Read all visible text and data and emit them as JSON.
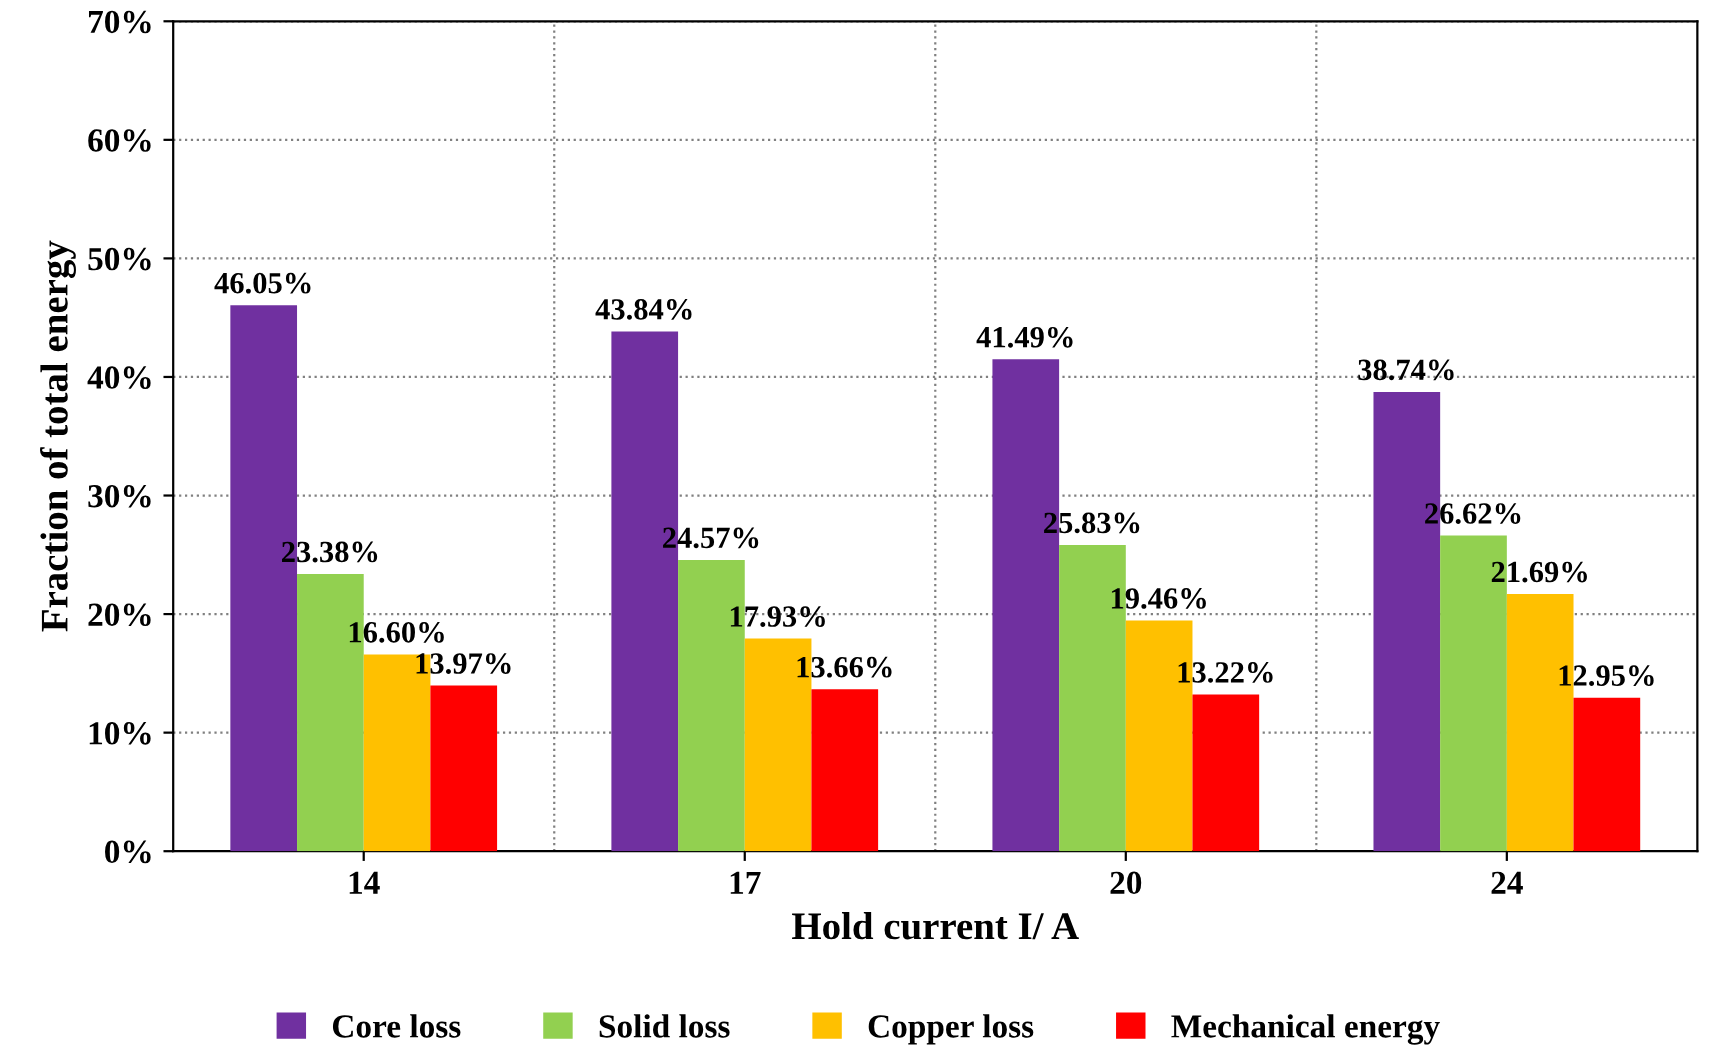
{
  "chart_data": {
    "type": "bar",
    "xlabel": "Hold current I/ A",
    "ylabel": "Fraction of total energy",
    "categories": [
      "14",
      "17",
      "20",
      "24"
    ],
    "series": [
      {
        "name": "Core loss",
        "color": "#7030a0",
        "values": [
          46.05,
          43.84,
          41.49,
          38.74
        ],
        "value_labels": [
          "46.05%",
          "43.84%",
          "41.49%",
          "38.74%"
        ]
      },
      {
        "name": "Solid loss",
        "color": "#92d050",
        "values": [
          23.38,
          24.57,
          25.83,
          26.62
        ],
        "value_labels": [
          "23.38%",
          "24.57%",
          "25.83%",
          "26.62%"
        ]
      },
      {
        "name": "Copper loss",
        "color": "#ffc000",
        "values": [
          16.6,
          17.93,
          19.46,
          21.69
        ],
        "value_labels": [
          "16.60%",
          "17.93%",
          "19.46%",
          "21.69%"
        ]
      },
      {
        "name": "Mechanical energy",
        "color": "#ff0000",
        "values": [
          13.97,
          13.66,
          13.22,
          12.95
        ],
        "value_labels": [
          "13.97%",
          "13.66%",
          "13.22%",
          "12.95%"
        ]
      }
    ],
    "ylim": [
      0,
      70
    ],
    "yticks": [
      {
        "value": 0,
        "label": "0%"
      },
      {
        "value": 10,
        "label": "10%"
      },
      {
        "value": 20,
        "label": "20%"
      },
      {
        "value": 30,
        "label": "30%"
      },
      {
        "value": 40,
        "label": "40%"
      },
      {
        "value": 50,
        "label": "50%"
      },
      {
        "value": 60,
        "label": "60%"
      },
      {
        "value": 70,
        "label": "70%"
      }
    ],
    "grid": true,
    "legend": "bottom"
  }
}
